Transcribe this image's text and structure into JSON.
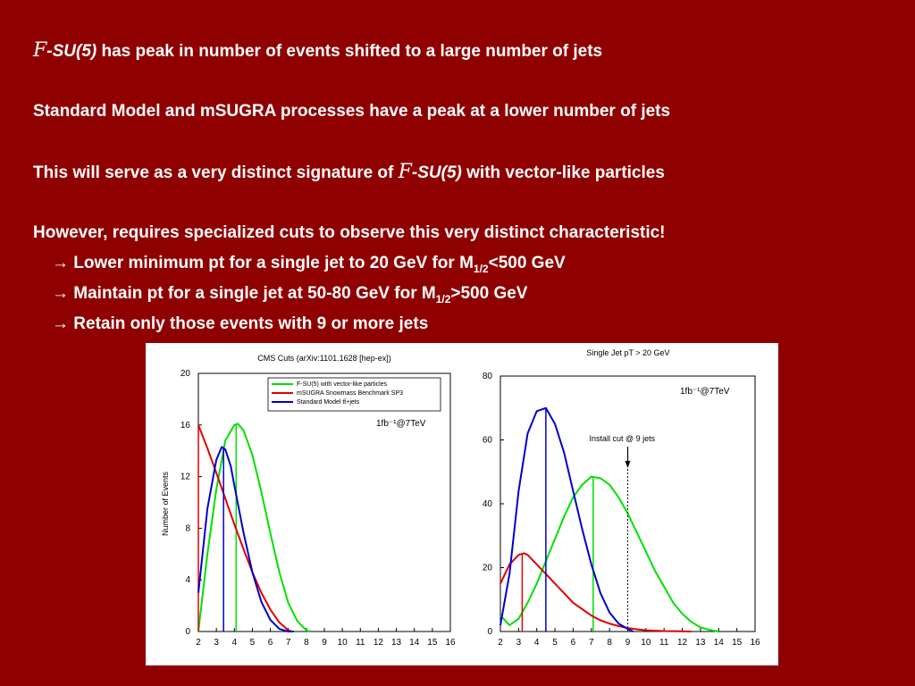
{
  "text": {
    "line1_fsu": "-SU(5)",
    "line1_script": "F",
    "line1_rest": " has peak in number of events shifted to a large number of jets",
    "line2": "Standard Model and mSUGRA processes have  a peak at a lower number of jets",
    "line3_pre": "This will serve as a very distinct signature of ",
    "line3_script": "F",
    "line3_fsu": "-SU(5)",
    "line3_post": "  with vector-like particles",
    "line4": "However, requires specialized cuts to observe this very distinct characteristic!",
    "bullet1_pre": "→ Lower minimum pt for a single jet to 20 GeV for M",
    "bullet1_sub": "1/2",
    "bullet1_post": "<500 GeV",
    "bullet2_pre": "→ Maintain pt for a single jet at 50-80 GeV for M",
    "bullet2_sub": "1/2",
    "bullet2_post": ">500 GeV",
    "bullet3": "→ Retain only those events with 9 or more jets"
  },
  "colors": {
    "background": "#8f0000",
    "fsu": "#00e000",
    "msugra": "#e00000",
    "sm": "#0000cc"
  },
  "chart_data": [
    {
      "type": "line",
      "title": "CMS Cuts (arXiv:1101.1628 [hep-ex])",
      "ylabel": "Number of Events",
      "xlabel": "",
      "annotation": "1fb⁻¹@7TeV",
      "xlim": [
        2,
        16
      ],
      "ylim": [
        0,
        20
      ],
      "xticks": [
        2,
        3,
        4,
        5,
        6,
        7,
        8,
        9,
        10,
        11,
        12,
        13,
        14,
        15,
        16
      ],
      "yticks": [
        0,
        4,
        8,
        12,
        16,
        20
      ],
      "legend": [
        "F-SU(5) with vector-like particles",
        "mSUGRA Snowmass Benchmark SP3",
        "Standard Model tt̄+jets"
      ],
      "legend_position": "top-right",
      "series": [
        {
          "name": "F-SU(5) with vector-like particles",
          "color": "#00e000",
          "x": [
            2.0,
            2.5,
            3.0,
            3.5,
            4.0,
            4.2,
            4.5,
            5.0,
            5.5,
            6.0,
            6.5,
            7.0,
            7.5,
            8.0,
            8.2
          ],
          "y": [
            0.0,
            6.0,
            11.0,
            14.8,
            16.0,
            16.1,
            15.6,
            13.7,
            10.8,
            7.6,
            4.6,
            2.2,
            0.8,
            0.1,
            0.0
          ],
          "peak_x": 4.1
        },
        {
          "name": "mSUGRA Snowmass Benchmark SP3",
          "color": "#e00000",
          "x": [
            2.0,
            2.5,
            3.0,
            3.5,
            4.0,
            4.5,
            5.0,
            5.5,
            6.0,
            6.5,
            7.0,
            7.2
          ],
          "y": [
            16.0,
            14.2,
            12.3,
            10.3,
            8.3,
            6.4,
            4.6,
            3.0,
            1.7,
            0.7,
            0.1,
            0.0
          ],
          "peak_x": 2.0
        },
        {
          "name": "Standard Model tt̄+jets",
          "color": "#0000cc",
          "x": [
            2.0,
            2.5,
            3.0,
            3.3,
            3.5,
            3.8,
            4.0,
            4.5,
            5.0,
            5.5,
            6.0,
            6.5,
            7.0,
            7.3
          ],
          "y": [
            3.0,
            9.5,
            13.3,
            14.3,
            14.1,
            12.8,
            11.3,
            7.7,
            4.6,
            2.3,
            0.9,
            0.2,
            0.0,
            0.0
          ],
          "peak_x": 3.4
        }
      ]
    },
    {
      "type": "line",
      "title": "Single Jet pT > 20 GeV",
      "ylabel": "",
      "xlabel": "",
      "annotation": "1fb⁻¹@7TeV",
      "cut_label": "Install cut @ 9 jets",
      "cut_x": 9,
      "xlim": [
        2,
        16
      ],
      "ylim": [
        0,
        80
      ],
      "xticks": [
        2,
        3,
        4,
        5,
        6,
        7,
        8,
        9,
        10,
        11,
        12,
        13,
        14,
        15,
        16
      ],
      "yticks": [
        0,
        20,
        40,
        60,
        80
      ],
      "series": [
        {
          "name": "F-SU(5) with vector-like particles",
          "color": "#00e000",
          "x": [
            2.0,
            2.5,
            3.0,
            3.5,
            4.0,
            4.5,
            5.0,
            5.5,
            6.0,
            6.5,
            7.0,
            7.5,
            8.0,
            8.5,
            9.0,
            9.5,
            10.0,
            10.5,
            11.0,
            11.5,
            12.0,
            12.5,
            13.0,
            13.5,
            14.0
          ],
          "y": [
            5,
            2,
            4,
            9,
            15,
            22,
            29,
            36,
            42,
            46,
            48.5,
            48,
            46,
            42,
            37,
            31,
            25,
            19,
            14,
            9,
            5.5,
            3,
            1.3,
            0.5,
            0
          ],
          "peak_x": 7.1
        },
        {
          "name": "mSUGRA Snowmass Benchmark SP3",
          "color": "#e00000",
          "x": [
            2.0,
            2.5,
            3.0,
            3.3,
            3.5,
            4.0,
            4.5,
            5.0,
            5.5,
            6.0,
            6.5,
            7.0,
            7.5,
            8.0,
            8.5,
            9.0,
            9.5,
            10.0,
            11.0,
            12.0,
            12.5
          ],
          "y": [
            15,
            21,
            24,
            24.5,
            24,
            21,
            18,
            15,
            12,
            9,
            7,
            5,
            3.5,
            2.5,
            1.7,
            1.1,
            0.7,
            0.4,
            0.15,
            0.05,
            0
          ],
          "peak_x": 3.2
        },
        {
          "name": "Standard Model tt̄+jets",
          "color": "#0000cc",
          "x": [
            2.0,
            2.5,
            3.0,
            3.5,
            4.0,
            4.5,
            5.0,
            5.5,
            6.0,
            6.5,
            7.0,
            7.5,
            8.0,
            8.5,
            9.0,
            9.3
          ],
          "y": [
            2,
            18,
            44,
            62,
            69,
            70,
            65,
            56,
            44,
            32,
            21,
            12,
            6,
            2.5,
            0.8,
            0
          ],
          "peak_x": 4.5
        }
      ]
    }
  ]
}
